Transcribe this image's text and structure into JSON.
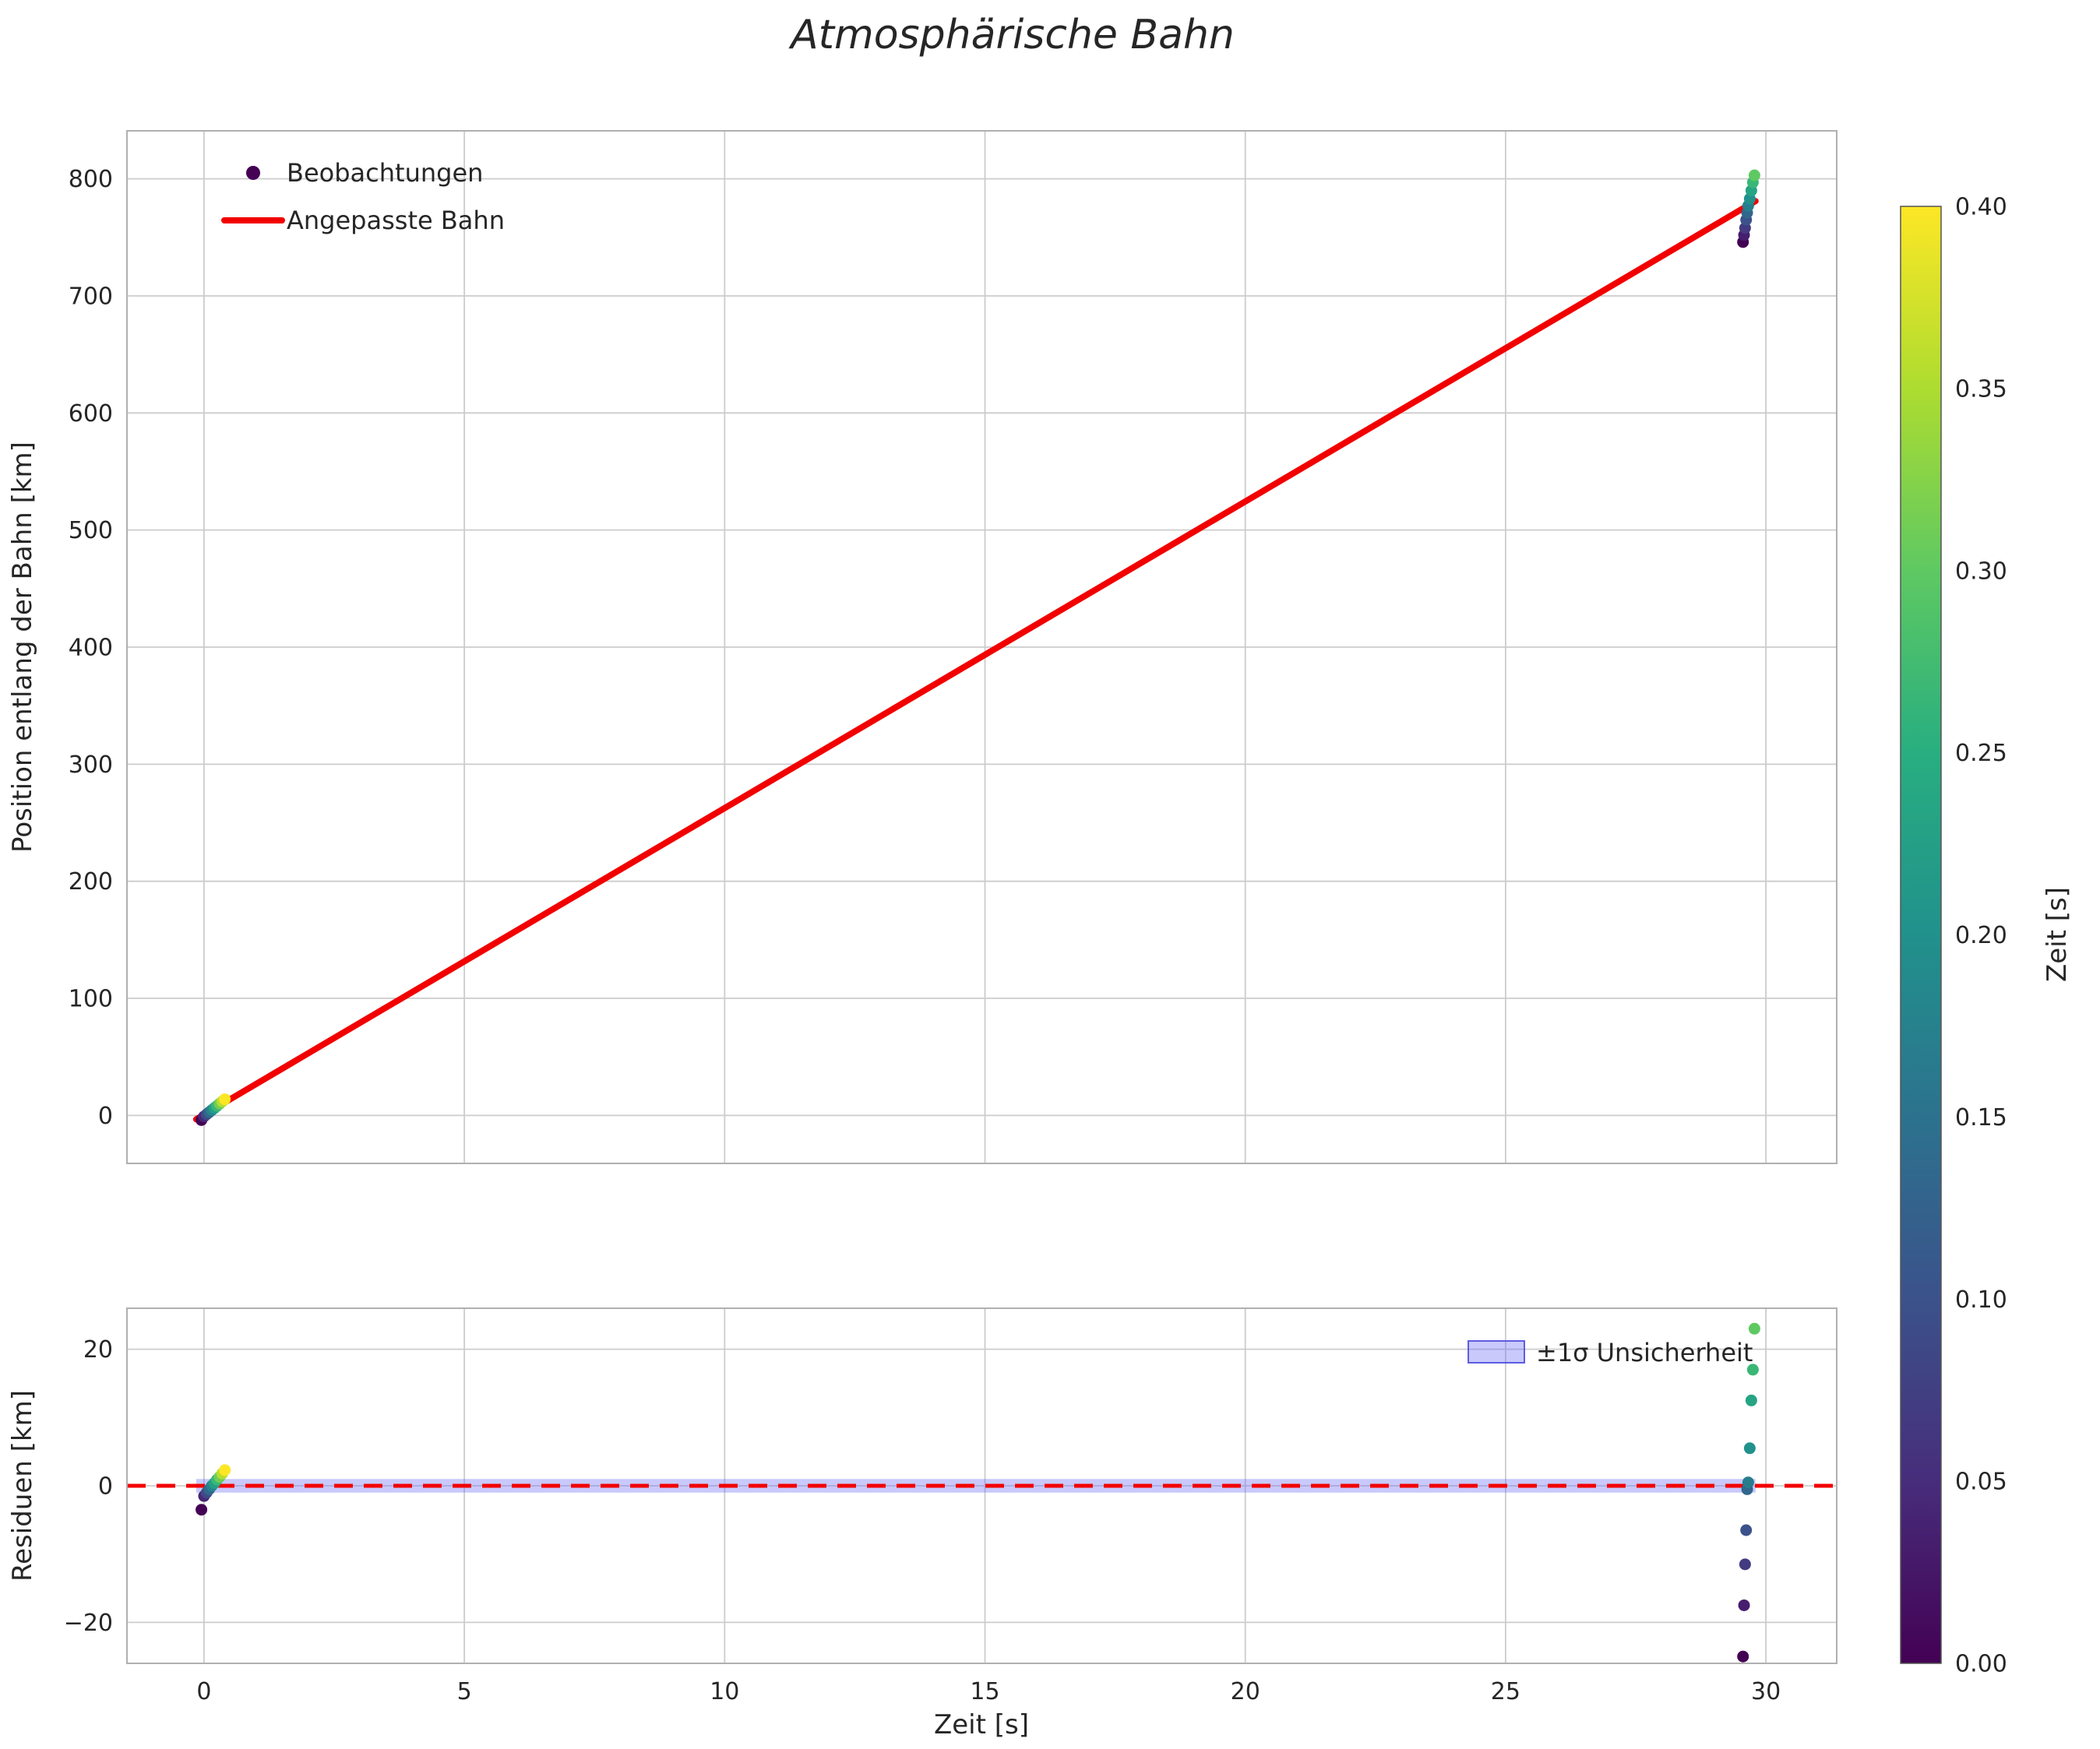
{
  "title": "Atmosphärische Bahn",
  "colors": {
    "fit_line": "#f20000",
    "zero_line": "#f20000",
    "band_fill": "rgba(100,100,245,0.35)",
    "band_edge": "rgba(70,70,220,0.85)",
    "grid": "#cccccc",
    "spine": "#b0b0b0",
    "text": "#262626",
    "viridis_stops": [
      [
        0.0,
        "#440154"
      ],
      [
        0.125,
        "#472d7b"
      ],
      [
        0.25,
        "#3b528b"
      ],
      [
        0.375,
        "#2c728e"
      ],
      [
        0.5,
        "#21918c"
      ],
      [
        0.625,
        "#28ae80"
      ],
      [
        0.75,
        "#5ec962"
      ],
      [
        0.875,
        "#addc30"
      ],
      [
        1.0,
        "#fde725"
      ]
    ]
  },
  "chart_data": [
    {
      "type": "scatter",
      "name": "position-panel",
      "title": "",
      "xlabel": "",
      "ylabel": "Position entlang der Bahn [km]",
      "xlim": [
        -1.48,
        31.36
      ],
      "ylim": [
        -41,
        841
      ],
      "xticks": [
        0,
        5,
        10,
        15,
        20,
        25,
        30
      ],
      "show_xtick_labels": false,
      "yticks": [
        0,
        100,
        200,
        300,
        400,
        500,
        600,
        700,
        800
      ],
      "grid": true,
      "legend": [
        {
          "label": "Beobachtungen",
          "type": "marker"
        },
        {
          "label": "Angepasste Bahn",
          "type": "line"
        }
      ],
      "fit_line": {
        "x": [
          -0.15,
          29.8
        ],
        "y": [
          -3.3,
          781.0
        ]
      },
      "points": {
        "t": [
          -0.05,
          0.0,
          0.05,
          0.1,
          0.15,
          0.2,
          0.25,
          0.3,
          0.35,
          0.4,
          29.56,
          29.58,
          29.6,
          29.62,
          29.64,
          29.66,
          29.69,
          29.72,
          29.75,
          29.78
        ],
        "s": [
          -4.0,
          -0.9,
          0.9,
          2.7,
          4.5,
          6.3,
          8.1,
          10.0,
          11.9,
          13.8,
          746,
          752,
          758,
          765,
          771,
          777,
          783,
          790,
          797,
          803
        ],
        "c": [
          0.0,
          0.044,
          0.089,
          0.133,
          0.178,
          0.222,
          0.267,
          0.311,
          0.356,
          0.4,
          0.0,
          0.033,
          0.067,
          0.1,
          0.133,
          0.167,
          0.2,
          0.233,
          0.267,
          0.3
        ]
      }
    },
    {
      "type": "scatter",
      "name": "residual-panel",
      "title": "",
      "xlabel": "Zeit [s]",
      "ylabel": "Residuen [km]",
      "xlim": [
        -1.48,
        31.36
      ],
      "ylim": [
        -26,
        26
      ],
      "xticks": [
        0,
        5,
        10,
        15,
        20,
        25,
        30
      ],
      "show_xtick_labels": true,
      "yticks": [
        -20,
        0,
        20
      ],
      "grid": true,
      "legend": [
        {
          "label": "±1σ Unsicherheit",
          "type": "patch"
        }
      ],
      "zero_line": 0,
      "band": [
        -1.0,
        1.0
      ],
      "band_x": [
        -0.15,
        29.8
      ],
      "points": {
        "t": [
          -0.05,
          0.0,
          0.05,
          0.1,
          0.15,
          0.2,
          0.25,
          0.3,
          0.35,
          0.4,
          29.56,
          29.58,
          29.6,
          29.62,
          29.64,
          29.66,
          29.69,
          29.72,
          29.75,
          29.78
        ],
        "r": [
          -3.5,
          -1.5,
          -1.0,
          -0.5,
          0.0,
          0.4,
          0.9,
          1.3,
          1.8,
          2.3,
          -25.0,
          -17.5,
          -11.5,
          -6.5,
          -0.5,
          0.5,
          5.5,
          12.5,
          17.0,
          23.0
        ],
        "c": [
          0.0,
          0.044,
          0.089,
          0.133,
          0.178,
          0.222,
          0.267,
          0.311,
          0.356,
          0.4,
          0.0,
          0.033,
          0.067,
          0.1,
          0.133,
          0.167,
          0.2,
          0.233,
          0.267,
          0.3
        ]
      }
    }
  ],
  "colorbar": {
    "label": "Zeit [s]",
    "min": 0.0,
    "max": 0.4,
    "ticks": [
      0.0,
      0.05,
      0.1,
      0.15,
      0.2,
      0.25,
      0.3,
      0.35,
      0.4
    ]
  }
}
